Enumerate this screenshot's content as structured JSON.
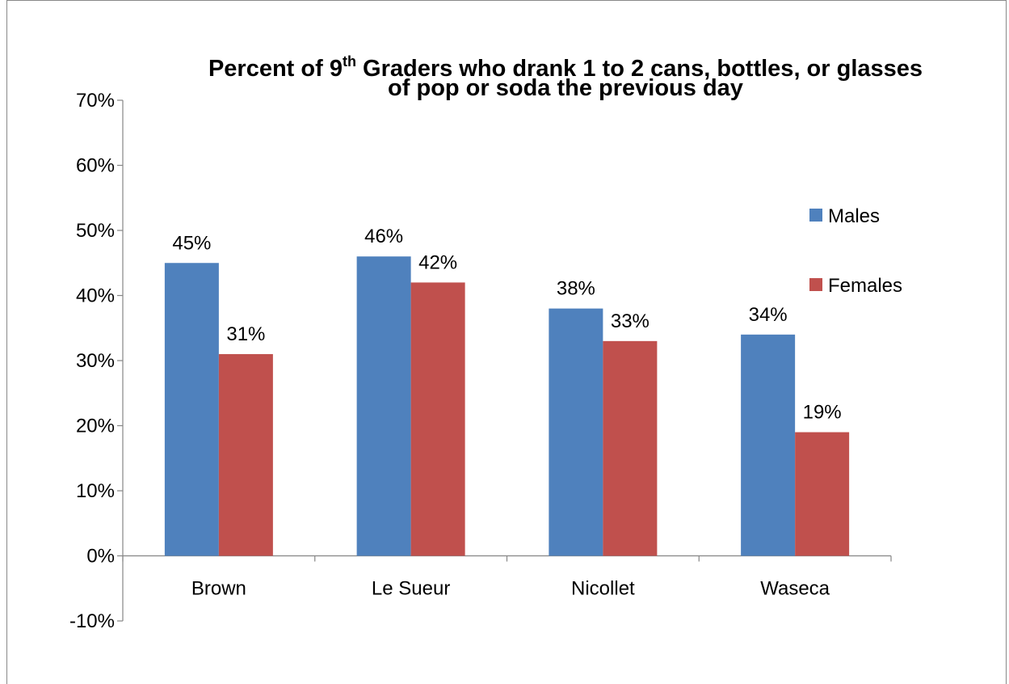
{
  "chart_data": {
    "type": "bar",
    "title_prefix": "Percent of 9",
    "title_superscript": "th",
    "title_line1_suffix": " Graders who drank 1 to 2 cans, bottles, or glasses",
    "title_line2": "of pop or soda the previous day",
    "categories": [
      "Brown",
      "Le Sueur",
      "Nicollet",
      "Waseca"
    ],
    "series": [
      {
        "name": "Males",
        "values": [
          45,
          46,
          38,
          34
        ],
        "labels": [
          "45%",
          "46%",
          "38%",
          "34%"
        ],
        "color": "#4F81BD"
      },
      {
        "name": "Females",
        "values": [
          31,
          42,
          33,
          19
        ],
        "labels": [
          "31%",
          "42%",
          "33%",
          "19%"
        ],
        "color": "#C0504D"
      }
    ],
    "ylim": [
      -10,
      70
    ],
    "yticks": [
      -10,
      0,
      10,
      20,
      30,
      40,
      50,
      60,
      70
    ],
    "ytick_labels": [
      "-10%",
      "0%",
      "10%",
      "20%",
      "30%",
      "40%",
      "50%",
      "60%",
      "70%"
    ],
    "grid": false,
    "legend_position": "right",
    "xlabel": "",
    "ylabel": ""
  }
}
